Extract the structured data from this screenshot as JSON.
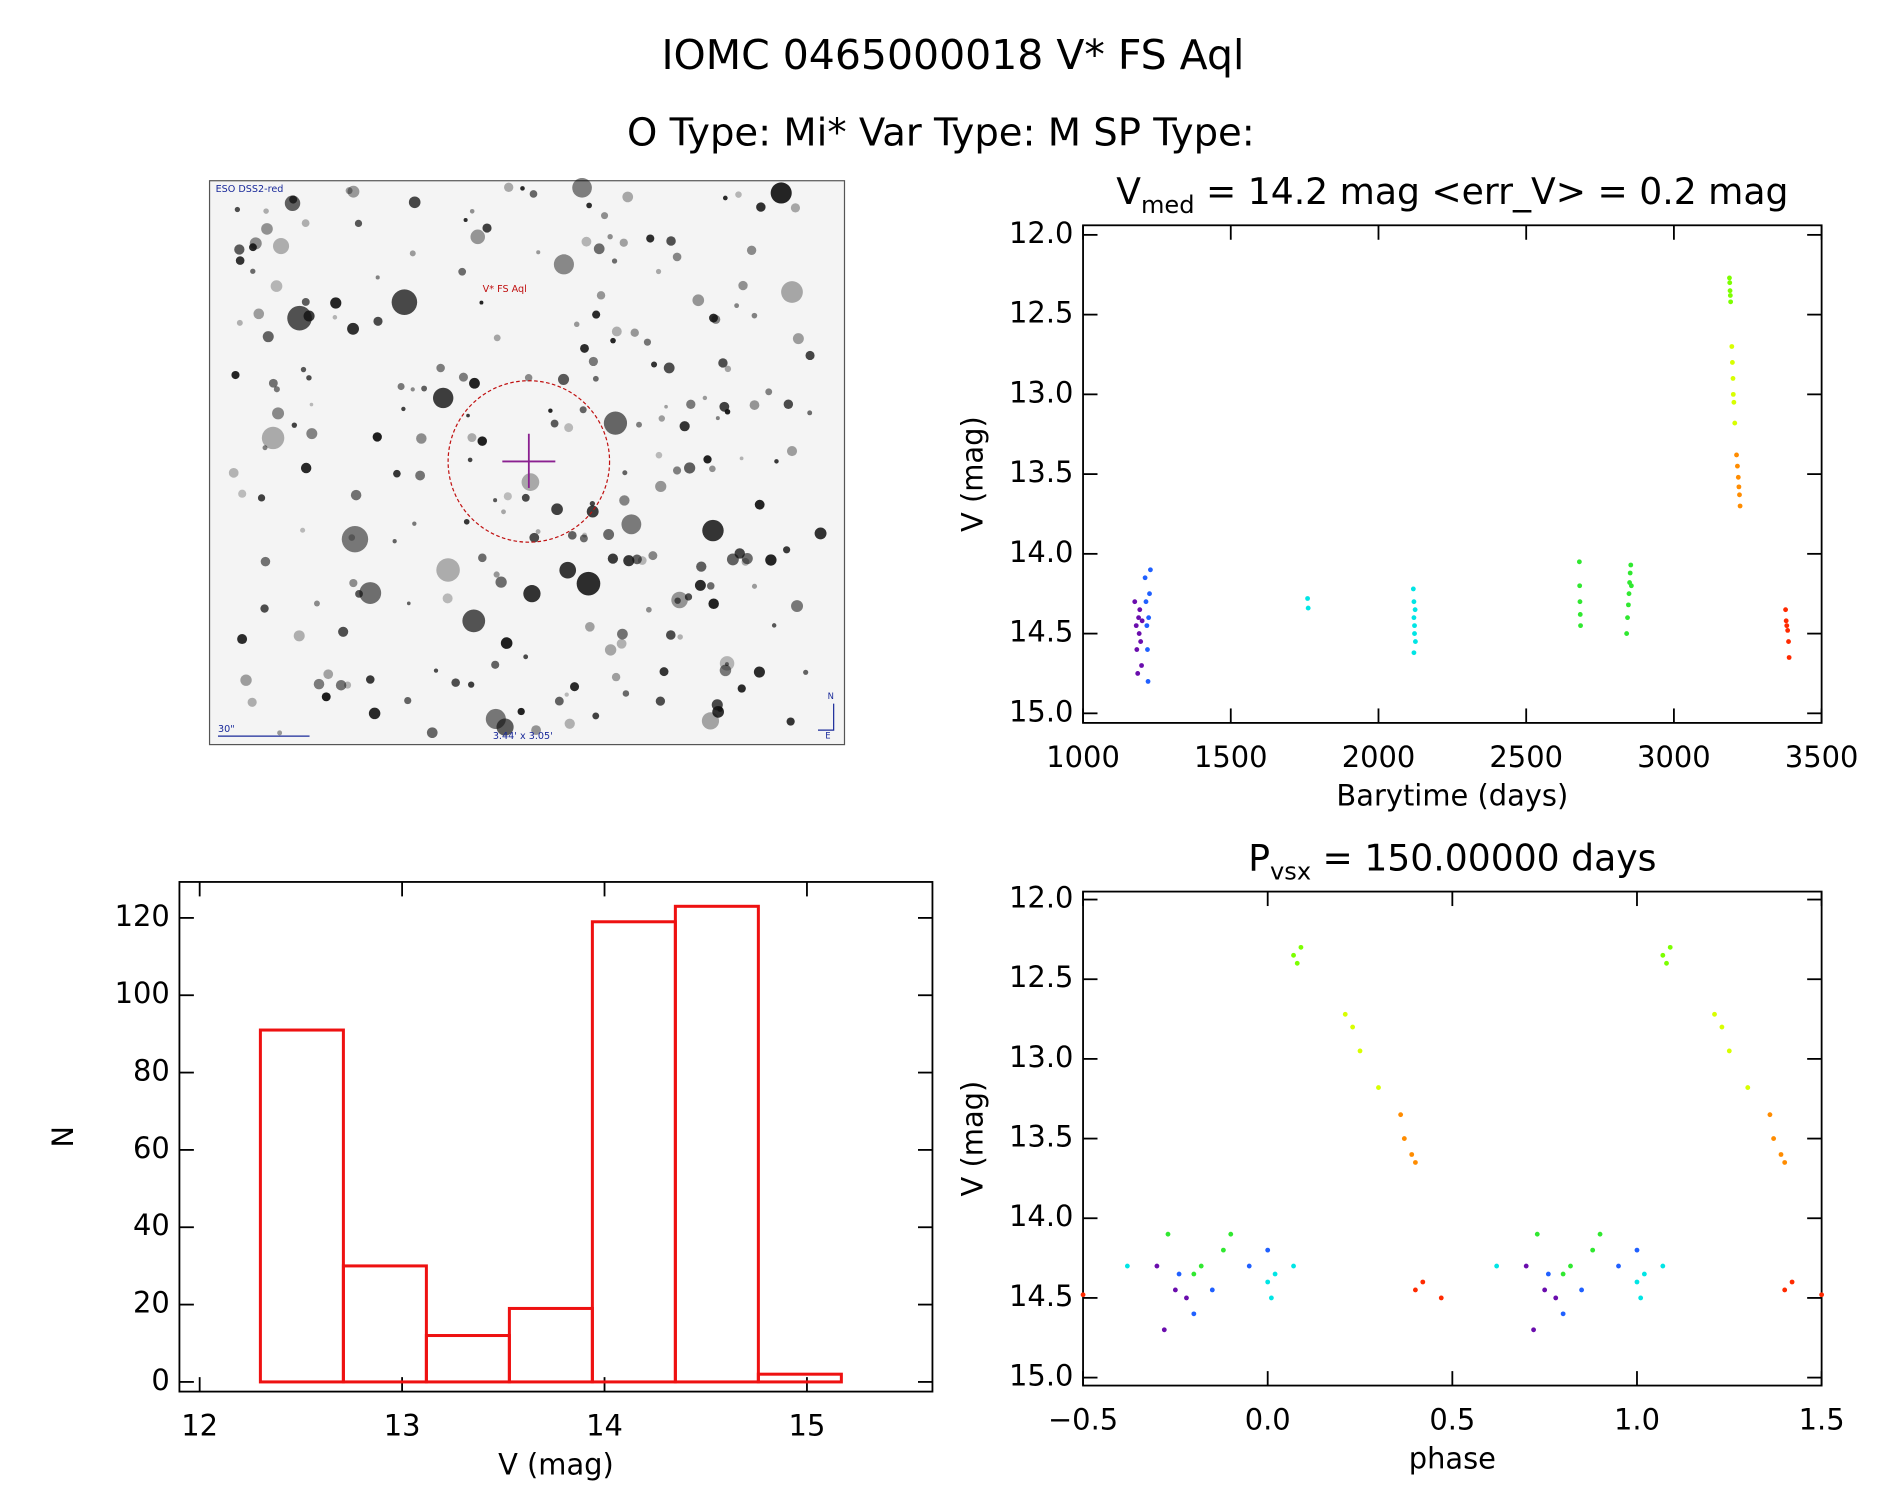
{
  "header": {
    "title": "IOMC 0465000018   V* FS Aql",
    "subtitle": "O Type: Mi*  Var Type: M  SP Type:"
  },
  "finder": {
    "survey": "ESO DSS2-red",
    "label": "V* FS Aql",
    "scale": "30\"",
    "size": "3.44' x 3.05'",
    "north": "N",
    "east": "E"
  },
  "chart_data": [
    {
      "type": "histogram",
      "xlabel": "V (mag)",
      "ylabel": "N",
      "color": "#ee1111",
      "bins": [
        12.3,
        12.71,
        13.12,
        13.53,
        13.94,
        14.35,
        14.76,
        15.17
      ],
      "values": [
        91,
        30,
        12,
        19,
        119,
        123,
        2
      ],
      "xlim": [
        11.9,
        15.62
      ],
      "xticks": [
        12,
        13,
        14,
        15
      ],
      "ylim": [
        -2.5,
        129.3
      ],
      "yticks": [
        0,
        20,
        40,
        60,
        80,
        100,
        120
      ]
    },
    {
      "type": "scatter",
      "title": {
        "main": "V",
        "sub": "med",
        "rest": " = 14.2 mag <err_V> = 0.2 mag"
      },
      "xlabel": "Barytime (days)",
      "ylabel": "V (mag)",
      "yreverse": true,
      "xlim": [
        1000,
        3500
      ],
      "xticks": [
        1000,
        1500,
        2000,
        2500,
        3000,
        3500
      ],
      "ylim": [
        11.94,
        15.06
      ],
      "yticks": [
        {
          "value": 12,
          "label": "12.0"
        },
        {
          "value": 12.5,
          "label": "12.5"
        },
        {
          "value": 13,
          "label": "13.0"
        },
        {
          "value": 13.5,
          "label": "13.5"
        },
        {
          "value": 14,
          "label": "14.0"
        },
        {
          "value": 14.5,
          "label": "14.5"
        },
        {
          "value": 15,
          "label": "15.0"
        }
      ],
      "series": [
        {
          "color": "#6a0dad",
          "x": [
            1175,
            1180,
            1182,
            1185,
            1188,
            1190,
            1192,
            1195,
            1198,
            1200
          ],
          "values": [
            14.3,
            14.45,
            14.6,
            14.75,
            14.4,
            14.5,
            14.35,
            14.55,
            14.7,
            14.42
          ]
        },
        {
          "color": "#2060ff",
          "x": [
            1210,
            1213,
            1216,
            1218,
            1220,
            1222,
            1225,
            1228
          ],
          "values": [
            14.15,
            14.3,
            14.45,
            14.6,
            14.8,
            14.4,
            14.25,
            14.1
          ]
        },
        {
          "color": "#00e5e5",
          "x": [
            1760,
            1762,
            2118,
            2120,
            2120,
            2122,
            2122,
            2124,
            2125,
            2120
          ],
          "values": [
            14.28,
            14.34,
            14.22,
            14.3,
            14.4,
            14.45,
            14.5,
            14.35,
            14.55,
            14.62
          ]
        },
        {
          "color": "#30e830",
          "x": [
            2680,
            2681,
            2682,
            2683,
            2684,
            2840,
            2843,
            2846,
            2848,
            2850,
            2852,
            2854,
            2856
          ],
          "values": [
            14.05,
            14.2,
            14.3,
            14.38,
            14.45,
            14.5,
            14.4,
            14.32,
            14.25,
            14.18,
            14.12,
            14.07,
            14.2
          ]
        },
        {
          "color": "#7cff00",
          "x": [
            3188,
            3189,
            3190,
            3191,
            3192
          ],
          "values": [
            12.27,
            12.3,
            12.35,
            12.38,
            12.42
          ]
        },
        {
          "color": "#d8ff00",
          "x": [
            3196,
            3198,
            3200,
            3201,
            3203,
            3206
          ],
          "values": [
            12.7,
            12.8,
            12.9,
            13.0,
            13.05,
            13.18
          ]
        },
        {
          "color": "#ff8c00",
          "x": [
            3212,
            3215,
            3218,
            3220,
            3222,
            3224
          ],
          "values": [
            13.38,
            13.45,
            13.52,
            13.58,
            13.63,
            13.7
          ]
        },
        {
          "color": "#ff2a00",
          "x": [
            3378,
            3380,
            3382,
            3385,
            3388,
            3390
          ],
          "values": [
            14.35,
            14.42,
            14.45,
            14.48,
            14.55,
            14.65
          ]
        }
      ]
    },
    {
      "type": "scatter",
      "title": {
        "main": "P",
        "sub": "vsx",
        "rest": " = 150.00000 days"
      },
      "xlabel": "phase",
      "ylabel": "V (mag)",
      "yreverse": true,
      "xlim": [
        -0.5,
        1.5
      ],
      "xticks": [
        {
          "value": -0.5,
          "label": "−0.5"
        },
        {
          "value": 0,
          "label": "0.0"
        },
        {
          "value": 0.5,
          "label": "0.5"
        },
        {
          "value": 1,
          "label": "1.0"
        },
        {
          "value": 1.5,
          "label": "1.5"
        }
      ],
      "ylim": [
        11.95,
        15.05
      ],
      "yticks": [
        {
          "value": 12,
          "label": "12.0"
        },
        {
          "value": 12.5,
          "label": "12.5"
        },
        {
          "value": 13,
          "label": "13.0"
        },
        {
          "value": 13.5,
          "label": "13.5"
        },
        {
          "value": 14,
          "label": "14.0"
        },
        {
          "value": 14.5,
          "label": "14.5"
        },
        {
          "value": 15,
          "label": "15.0"
        }
      ],
      "series": [
        {
          "color": "#6a0dad",
          "x": [
            -0.3,
            -0.28,
            -0.25,
            -0.22,
            0.7,
            0.72,
            0.75,
            0.78
          ],
          "values": [
            14.3,
            14.7,
            14.45,
            14.5,
            14.3,
            14.7,
            14.45,
            14.5
          ]
        },
        {
          "color": "#2060ff",
          "x": [
            -0.24,
            -0.2,
            -0.15,
            -0.05,
            0.0,
            0.76,
            0.8,
            0.85,
            0.95,
            1.0
          ],
          "values": [
            14.35,
            14.6,
            14.45,
            14.3,
            14.2,
            14.35,
            14.6,
            14.45,
            14.3,
            14.2
          ]
        },
        {
          "color": "#00e5e5",
          "x": [
            -0.38,
            0.0,
            0.01,
            0.02,
            0.07,
            0.62,
            1.0,
            1.01,
            1.02,
            1.07
          ],
          "values": [
            14.3,
            14.4,
            14.5,
            14.35,
            14.3,
            14.3,
            14.4,
            14.5,
            14.35,
            14.3
          ]
        },
        {
          "color": "#30e830",
          "x": [
            -0.27,
            -0.2,
            -0.18,
            -0.12,
            -0.1,
            0.73,
            0.8,
            0.82,
            0.88,
            0.9
          ],
          "values": [
            14.1,
            14.35,
            14.3,
            14.2,
            14.1,
            14.1,
            14.35,
            14.3,
            14.2,
            14.1
          ]
        },
        {
          "color": "#7cff00",
          "x": [
            0.07,
            0.08,
            0.09,
            1.07,
            1.08,
            1.09
          ],
          "values": [
            12.35,
            12.4,
            12.3,
            12.35,
            12.4,
            12.3
          ]
        },
        {
          "color": "#d8ff00",
          "x": [
            0.21,
            0.23,
            0.25,
            0.3,
            1.21,
            1.23,
            1.25,
            1.3
          ],
          "values": [
            12.72,
            12.8,
            12.95,
            13.18,
            12.72,
            12.8,
            12.95,
            13.18
          ]
        },
        {
          "color": "#ff8c00",
          "x": [
            0.36,
            0.37,
            0.39,
            0.4,
            1.36,
            1.37,
            1.39,
            1.4
          ],
          "values": [
            13.35,
            13.5,
            13.6,
            13.65,
            13.35,
            13.5,
            13.6,
            13.65
          ]
        },
        {
          "color": "#ff2a00",
          "x": [
            -0.5,
            0.4,
            0.42,
            0.47,
            1.4,
            1.42,
            1.5
          ],
          "values": [
            14.48,
            14.45,
            14.4,
            14.5,
            14.45,
            14.4,
            14.48
          ]
        }
      ]
    }
  ]
}
